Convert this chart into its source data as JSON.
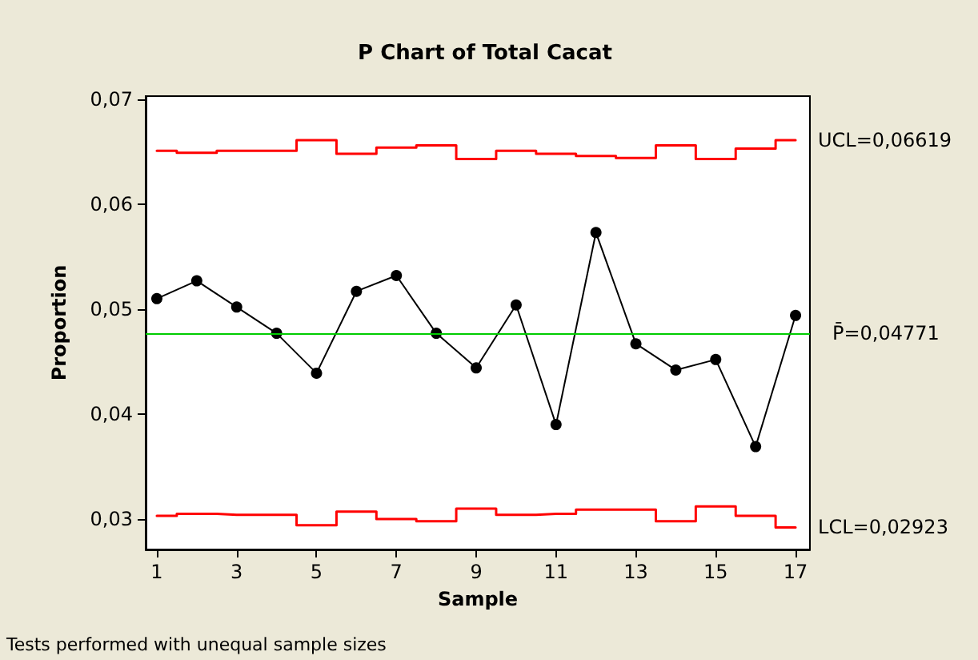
{
  "chart_data": {
    "type": "line",
    "title": "P Chart of Total Cacat",
    "xlabel": "Sample",
    "ylabel": "Proportion",
    "annotations": [
      "Tests performed with unequal sample sizes"
    ],
    "x": [
      1,
      2,
      3,
      4,
      5,
      6,
      7,
      8,
      9,
      10,
      11,
      12,
      13,
      14,
      15,
      16,
      17
    ],
    "series": [
      {
        "color": "#000000",
        "values": [
          0.051,
          0.0527,
          0.0502,
          0.0477,
          0.0439,
          0.0517,
          0.0532,
          0.0477,
          0.0444,
          0.0504,
          0.039,
          0.0573,
          0.0467,
          0.0442,
          0.0452,
          0.0369,
          0.0494
        ]
      },
      {
        "name": "UCL=0,06619",
        "type": "step",
        "color": "#ff0000",
        "marker": "none",
        "values": [
          0.0651,
          0.0649,
          0.0651,
          0.0651,
          0.0661,
          0.0648,
          0.0654,
          0.0656,
          0.0643,
          0.0651,
          0.0648,
          0.0646,
          0.0644,
          0.0656,
          0.0643,
          0.0653,
          0.0661
        ]
      },
      {
        "name": "LCL=0,02923",
        "type": "step",
        "color": "#ff0000",
        "marker": "none",
        "values": [
          0.0303,
          0.0305,
          0.0304,
          0.0304,
          0.0294,
          0.0307,
          0.03,
          0.0298,
          0.031,
          0.0304,
          0.0305,
          0.0309,
          0.0309,
          0.0298,
          0.0312,
          0.0303,
          0.0292
        ]
      }
    ],
    "ref_lines": [
      {
        "axis": "y",
        "value": 0.04771,
        "label": "P̄=0,04771",
        "color": "#00cc00"
      }
    ],
    "xlim": [
      0.72,
      17.36
    ],
    "xticks": [
      1,
      3,
      5,
      7,
      9,
      11,
      13,
      15,
      17
    ],
    "ylim": [
      0.0271,
      0.0703
    ],
    "yticks": [
      {
        "value": 0.03,
        "label": "0,03"
      },
      {
        "value": 0.04,
        "label": "0,04"
      },
      {
        "value": 0.05,
        "label": "0,05"
      },
      {
        "value": 0.06,
        "label": "0,06"
      },
      {
        "value": 0.07,
        "label": "0,07"
      }
    ],
    "grid": false,
    "legend": false,
    "marker": "circle",
    "line_style": "solid"
  }
}
